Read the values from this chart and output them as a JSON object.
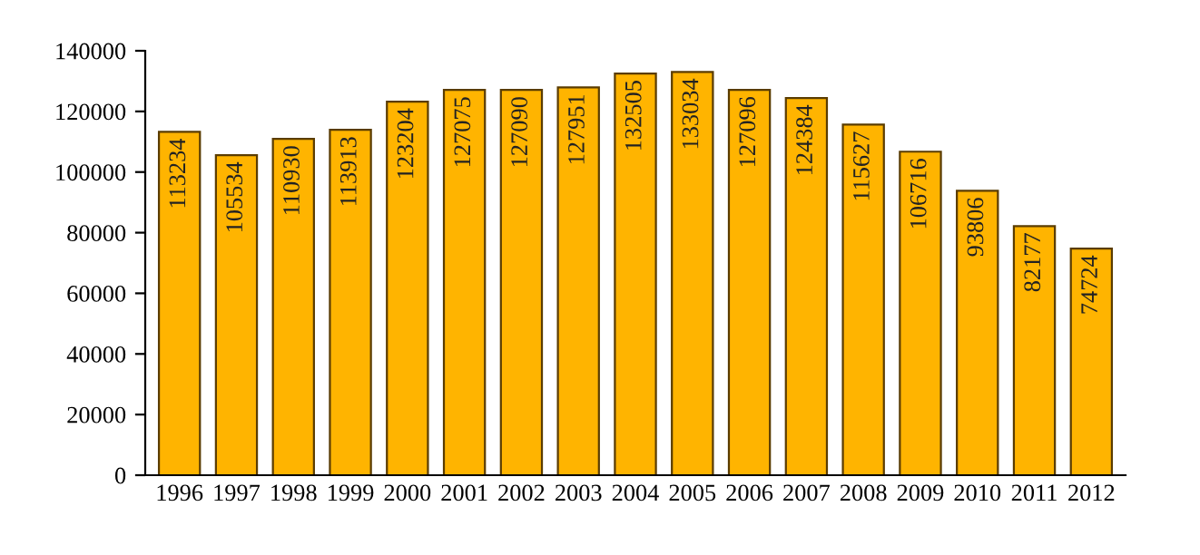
{
  "chart_data": {
    "type": "bar",
    "categories": [
      "1996",
      "1997",
      "1998",
      "1999",
      "2000",
      "2001",
      "2002",
      "2003",
      "2004",
      "2005",
      "2006",
      "2007",
      "2008",
      "2009",
      "2010",
      "2011",
      "2012"
    ],
    "values": [
      113234,
      105534,
      110930,
      113913,
      123204,
      127075,
      127090,
      127951,
      132505,
      133034,
      127096,
      124384,
      115627,
      106716,
      93806,
      82177,
      74724
    ],
    "color": "#ffb400",
    "ylim": [
      0,
      140000
    ],
    "yticks": [
      0,
      20000,
      40000,
      60000,
      80000,
      100000,
      120000,
      140000
    ],
    "data_labels": true,
    "grid": false,
    "legend": false
  }
}
